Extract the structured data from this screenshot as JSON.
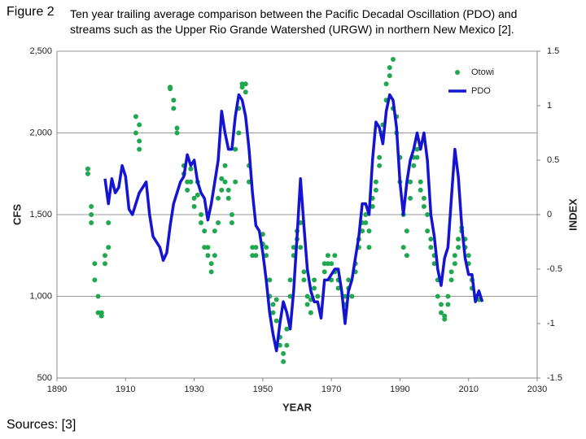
{
  "figure_label": "Figure 2",
  "caption": "Ten year trailing average comparison between the Pacific Decadal Oscillation (PDO) and streams such as the Upper Rio Grande Watershed (URGW) in northern New Mexico [2].",
  "sources": "Sources: [3]",
  "chart_data": {
    "type": "scatter",
    "xlabel": "YEAR",
    "ylabel": "CFS",
    "y2label": "INDEX",
    "xlim": [
      1890,
      2030
    ],
    "xticks": [
      1890,
      1910,
      1930,
      1950,
      1970,
      1990,
      2010,
      2030
    ],
    "ylim": [
      500,
      2500
    ],
    "yticks": [
      500,
      {
        "value": 1000,
        "label": "1,000"
      },
      {
        "value": 1500,
        "label": "1,500"
      },
      {
        "value": 2000,
        "label": "2,000"
      },
      {
        "value": 2500,
        "label": "2,500"
      }
    ],
    "y2lim": [
      -1.5,
      1.5
    ],
    "y2ticks": [
      -1.5,
      -1,
      -0.5,
      0,
      0.5,
      1,
      1.5
    ],
    "grid": true,
    "legend": "upper right",
    "series": [
      {
        "name": "Otowi",
        "type": "scatter",
        "color": "#1fa84f",
        "x": [
          1899,
          1899,
          1900,
          1900,
          1900,
          1901,
          1901,
          1902,
          1902,
          1903,
          1903,
          1904,
          1904,
          1905,
          1905,
          1913,
          1913,
          1914,
          1914,
          1914,
          1923,
          1923,
          1924,
          1924,
          1925,
          1925,
          1927,
          1927,
          1928,
          1928,
          1929,
          1929,
          1930,
          1930,
          1931,
          1931,
          1932,
          1932,
          1933,
          1933,
          1934,
          1934,
          1935,
          1935,
          1936,
          1936,
          1937,
          1937,
          1938,
          1938,
          1939,
          1939,
          1940,
          1940,
          1941,
          1941,
          1942,
          1942,
          1943,
          1943,
          1944,
          1944,
          1945,
          1945,
          1946,
          1946,
          1947,
          1947,
          1948,
          1948,
          1950,
          1950,
          1951,
          1951,
          1952,
          1952,
          1953,
          1953,
          1954,
          1954,
          1955,
          1955,
          1956,
          1956,
          1957,
          1957,
          1958,
          1958,
          1959,
          1959,
          1960,
          1960,
          1961,
          1961,
          1962,
          1962,
          1963,
          1963,
          1964,
          1964,
          1965,
          1965,
          1966,
          1968,
          1968,
          1969,
          1969,
          1970,
          1970,
          1971,
          1971,
          1972,
          1972,
          1974,
          1974,
          1975,
          1975,
          1976,
          1977,
          1977,
          1978,
          1978,
          1979,
          1979,
          1980,
          1980,
          1981,
          1981,
          1982,
          1982,
          1983,
          1983,
          1984,
          1984,
          1985,
          1985,
          1986,
          1986,
          1987,
          1987,
          1988,
          1988,
          1989,
          1989,
          1990,
          1990,
          1991,
          1991,
          1992,
          1992,
          1993,
          1993,
          1994,
          1994,
          1995,
          1995,
          1996,
          1996,
          1997,
          1997,
          1998,
          1998,
          1999,
          1999,
          2000,
          2000,
          2001,
          2001,
          2002,
          2002,
          2003,
          2003,
          2004,
          2004,
          2005,
          2005,
          2006,
          2006,
          2007,
          2007,
          2008,
          2008,
          2009,
          2009,
          2010,
          2010,
          2011,
          2011,
          2012,
          2013
        ],
        "values": [
          1780,
          1750,
          1500,
          1450,
          1550,
          1200,
          1100,
          1000,
          900,
          880,
          900,
          1250,
          1200,
          1300,
          1450,
          2100,
          2000,
          1950,
          2050,
          1900,
          2280,
          2270,
          2150,
          2200,
          2030,
          2000,
          1800,
          1750,
          1700,
          1650,
          1700,
          1780,
          1550,
          1600,
          1700,
          1620,
          1500,
          1450,
          1300,
          1400,
          1300,
          1250,
          1200,
          1150,
          1250,
          1400,
          1600,
          1450,
          1720,
          1650,
          1800,
          1700,
          1600,
          1650,
          1500,
          1450,
          1700,
          1900,
          2150,
          2000,
          2300,
          2280,
          2250,
          2300,
          1800,
          1700,
          1300,
          1250,
          1250,
          1300,
          1380,
          1320,
          1300,
          1250,
          1100,
          1000,
          950,
          900,
          850,
          980,
          750,
          700,
          650,
          600,
          700,
          800,
          1000,
          1100,
          1300,
          1250,
          1350,
          1400,
          1450,
          1300,
          1150,
          1100,
          1000,
          950,
          900,
          980,
          1050,
          1100,
          1000,
          1150,
          1200,
          1250,
          1200,
          1200,
          1100,
          1250,
          1150,
          1100,
          1050,
          950,
          1000,
          1050,
          1100,
          1000,
          1150,
          1200,
          1300,
          1350,
          1450,
          1400,
          1500,
          1450,
          1400,
          1300,
          1550,
          1600,
          1700,
          1650,
          1800,
          1850,
          2050,
          2000,
          2200,
          2300,
          2400,
          2350,
          2450,
          2150,
          2100,
          2000,
          1850,
          1700,
          1500,
          1300,
          1250,
          1400,
          1600,
          1700,
          1800,
          1850,
          1850,
          1900,
          1700,
          1650,
          1600,
          1550,
          1500,
          1400,
          1350,
          1300,
          1250,
          1200,
          1100,
          1000,
          950,
          900,
          880,
          860,
          950,
          1000,
          1100,
          1150,
          1200,
          1250,
          1300,
          1350,
          1420,
          1400,
          1350,
          1300,
          1250,
          1200,
          1100,
          1050,
          1000,
          980
        ]
      },
      {
        "name": "PDO",
        "type": "line",
        "axis": "y2",
        "color": "#1414d2",
        "x": [
          1904,
          1905,
          1906,
          1907,
          1908,
          1909,
          1910,
          1911,
          1912,
          1913,
          1914,
          1915,
          1916,
          1917,
          1918,
          1919,
          1920,
          1921,
          1922,
          1923,
          1924,
          1925,
          1926,
          1927,
          1928,
          1929,
          1930,
          1931,
          1932,
          1933,
          1934,
          1935,
          1936,
          1937,
          1938,
          1939,
          1940,
          1941,
          1942,
          1943,
          1944,
          1945,
          1946,
          1947,
          1948,
          1949,
          1950,
          1951,
          1952,
          1953,
          1954,
          1955,
          1956,
          1957,
          1958,
          1959,
          1960,
          1961,
          1962,
          1963,
          1964,
          1965,
          1966,
          1967,
          1968,
          1969,
          1970,
          1971,
          1972,
          1973,
          1974,
          1975,
          1976,
          1977,
          1978,
          1979,
          1980,
          1981,
          1982,
          1983,
          1984,
          1985,
          1986,
          1987,
          1988,
          1989,
          1990,
          1991,
          1992,
          1993,
          1994,
          1995,
          1996,
          1997,
          1998,
          1999,
          2000,
          2001,
          2002,
          2003,
          2004,
          2005,
          2006,
          2007,
          2008,
          2009,
          2010,
          2011,
          2012,
          2013,
          2014
        ],
        "values": [
          0.33,
          0.1,
          0.33,
          0.2,
          0.25,
          0.45,
          0.35,
          0.05,
          0.0,
          0.1,
          0.2,
          0.25,
          0.3,
          0.0,
          -0.2,
          -0.25,
          -0.3,
          -0.42,
          -0.35,
          -0.1,
          0.1,
          0.2,
          0.3,
          0.35,
          0.55,
          0.45,
          0.5,
          0.3,
          0.2,
          0.15,
          -0.05,
          0.1,
          0.3,
          0.5,
          0.95,
          0.75,
          0.6,
          0.6,
          0.9,
          1.1,
          1.05,
          0.9,
          0.6,
          0.2,
          -0.1,
          -0.15,
          -0.35,
          -0.6,
          -0.9,
          -1.1,
          -1.25,
          -1.0,
          -0.8,
          -0.9,
          -1.05,
          -0.7,
          -0.2,
          0.33,
          -0.1,
          -0.5,
          -0.7,
          -0.8,
          -0.8,
          -0.95,
          -0.6,
          -0.6,
          -0.55,
          -0.5,
          -0.5,
          -0.7,
          -1.0,
          -0.7,
          -0.6,
          -0.4,
          -0.2,
          0.1,
          0.1,
          0.0,
          0.5,
          0.85,
          0.8,
          0.65,
          0.95,
          1.1,
          1.05,
          0.8,
          0.3,
          0.0,
          0.3,
          0.5,
          0.6,
          0.75,
          0.6,
          0.75,
          0.5,
          0.0,
          -0.2,
          -0.5,
          -0.65,
          -0.4,
          -0.3,
          0.15,
          0.6,
          0.35,
          -0.1,
          -0.4,
          -0.55,
          -0.55,
          -0.8,
          -0.7,
          -0.8
        ]
      }
    ]
  }
}
